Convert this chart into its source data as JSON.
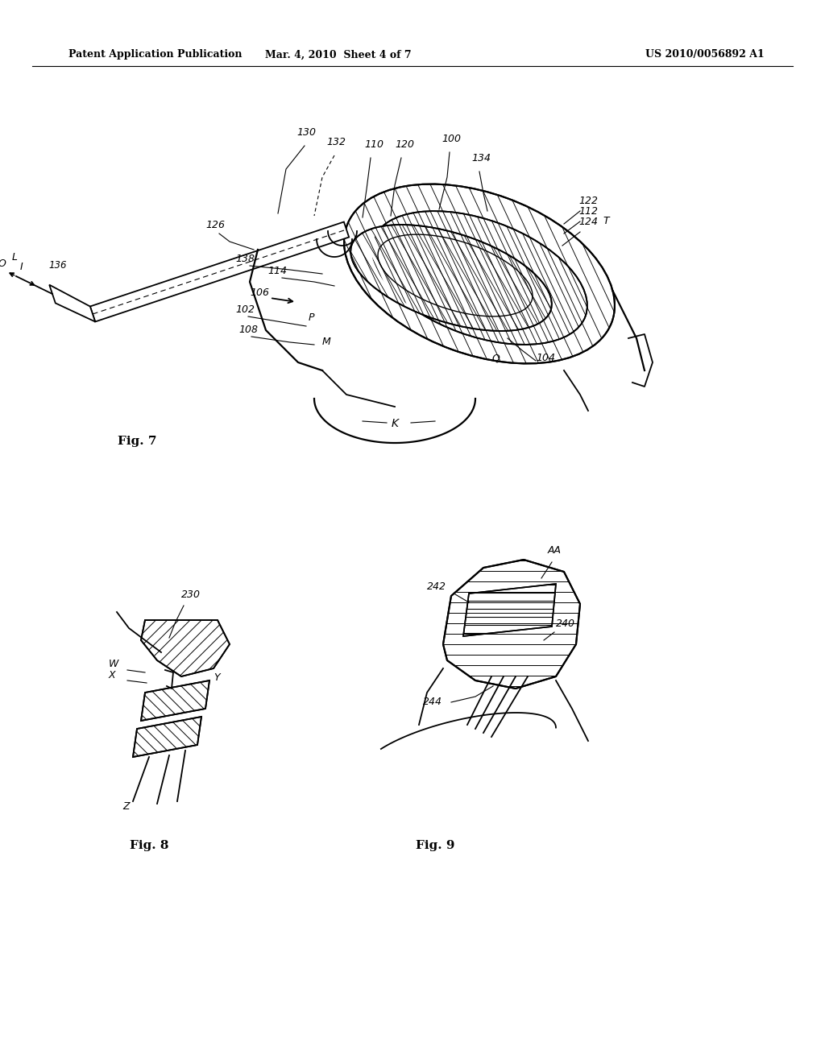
{
  "bg_color": "#ffffff",
  "header_left": "Patent Application Publication",
  "header_mid": "Mar. 4, 2010  Sheet 4 of 7",
  "header_right": "US 2010/0056892 A1",
  "line_color": "#000000"
}
